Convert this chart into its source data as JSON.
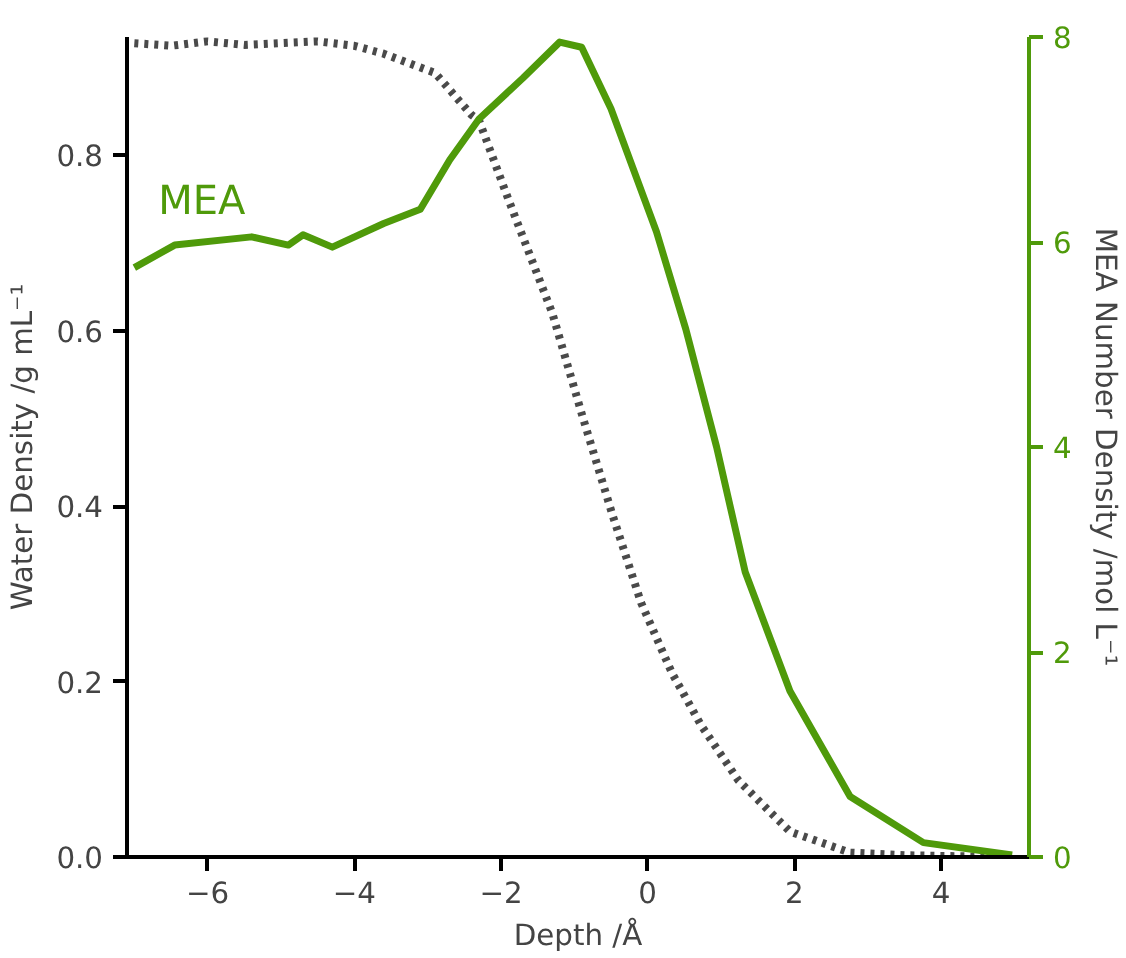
{
  "chart_data": {
    "type": "line",
    "xlabel": "Depth /Å",
    "ylabel": "Water Density /g mL⁻¹",
    "y2label": "MEA Number Density /mol L⁻¹",
    "xlim": [
      -7.1,
      5.2
    ],
    "xticks": [
      -6,
      -4,
      -2,
      0,
      2,
      4
    ],
    "ylim": [
      0,
      0.935
    ],
    "yticks": [
      {
        "value": 0,
        "label": "0.0"
      },
      0.2,
      0.4,
      0.6,
      0.8
    ],
    "y2lim": [
      0,
      8
    ],
    "y2ticks": [
      0,
      2,
      4,
      6,
      8
    ],
    "grid": false,
    "series": [
      {
        "color": "#4a4a4a",
        "line_style": "dotted",
        "x": [
          -7.0,
          -6.5,
          -6.0,
          -5.5,
          -5.0,
          -4.5,
          -4.0,
          -3.6,
          -2.9,
          -2.4,
          -2.3,
          -1.9,
          -1.3,
          -0.88,
          -0.48,
          -0.09,
          0.33,
          0.73,
          1.24,
          1.94,
          2.76,
          3.5,
          4.8
        ],
        "values": [
          0.928,
          0.925,
          0.93,
          0.926,
          0.928,
          0.93,
          0.925,
          0.916,
          0.894,
          0.846,
          0.84,
          0.75,
          0.62,
          0.5,
          0.39,
          0.29,
          0.21,
          0.15,
          0.087,
          0.029,
          0.005,
          0.002,
          0.0
        ]
      },
      {
        "name": "MEA",
        "color": "#4f9a0a",
        "line_style": "solid",
        "axis": "y2",
        "x": [
          -7.0,
          -6.45,
          -5.4,
          -4.9,
          -4.7,
          -4.3,
          -3.6,
          -3.1,
          -2.7,
          -2.3,
          -1.7,
          -1.2,
          -0.9,
          -0.5,
          0.12,
          0.52,
          0.94,
          1.33,
          1.94,
          2.76,
          3.76,
          4.97
        ],
        "values": [
          5.75,
          5.97,
          6.05,
          5.97,
          6.07,
          5.95,
          6.18,
          6.32,
          6.8,
          7.2,
          7.6,
          7.95,
          7.9,
          7.3,
          6.1,
          5.15,
          4.0,
          2.78,
          1.62,
          0.59,
          0.14,
          0.02
        ]
      }
    ]
  }
}
